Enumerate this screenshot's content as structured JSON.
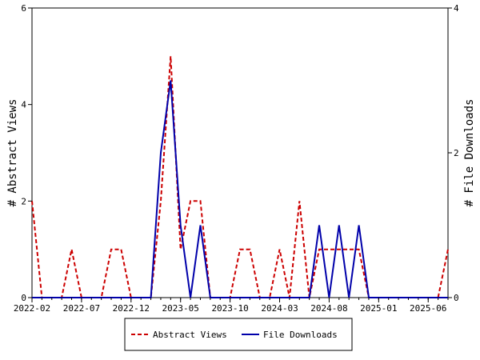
{
  "chart_data": {
    "type": "line",
    "title": "",
    "ylabel_left": "# Abstract Views",
    "ylabel_right": "# File Downloads",
    "xlim": [
      0,
      42
    ],
    "ylim_left": [
      0,
      6
    ],
    "ylim_right": [
      0,
      4
    ],
    "left_ticks": [
      "0",
      "2",
      "4",
      "6"
    ],
    "right_ticks": [
      "0",
      "2",
      "4"
    ],
    "x_tick_labels": [
      {
        "label": "2022-02",
        "x": 0
      },
      {
        "label": "2022-07",
        "x": 5
      },
      {
        "label": "2022-12",
        "x": 10
      },
      {
        "label": "2023-05",
        "x": 15
      },
      {
        "label": "2023-10",
        "x": 20
      },
      {
        "label": "2024-03",
        "x": 25
      },
      {
        "label": "2024-08",
        "x": 30
      },
      {
        "label": "2025-01",
        "x": 35
      },
      {
        "label": "2025-06",
        "x": 40
      }
    ],
    "grid": false,
    "legend_position": "bottom",
    "series": [
      {
        "name": "Abstract Views",
        "axis": "left",
        "color": "#cc0000",
        "dash": "dashed",
        "values": [
          2,
          0,
          0,
          0,
          1,
          0,
          0,
          0,
          1,
          1,
          0,
          0,
          0,
          2,
          5,
          1,
          2,
          2,
          0,
          0,
          0,
          1,
          1,
          0,
          0,
          1,
          0,
          2,
          0,
          1,
          1,
          1,
          1,
          1,
          0,
          0,
          0,
          0,
          0,
          0,
          0,
          0,
          1
        ]
      },
      {
        "name": "File Downloads",
        "axis": "right",
        "color": "#0000aa",
        "dash": "solid",
        "values": [
          0,
          0,
          0,
          0,
          0,
          0,
          0,
          0,
          0,
          0,
          0,
          0,
          0,
          2,
          3,
          1,
          0,
          1,
          0,
          0,
          0,
          0,
          0,
          0,
          0,
          0,
          0,
          0,
          0,
          1,
          0,
          1,
          0,
          1,
          0,
          0,
          0,
          0,
          0,
          0,
          0,
          0,
          0
        ]
      }
    ]
  }
}
